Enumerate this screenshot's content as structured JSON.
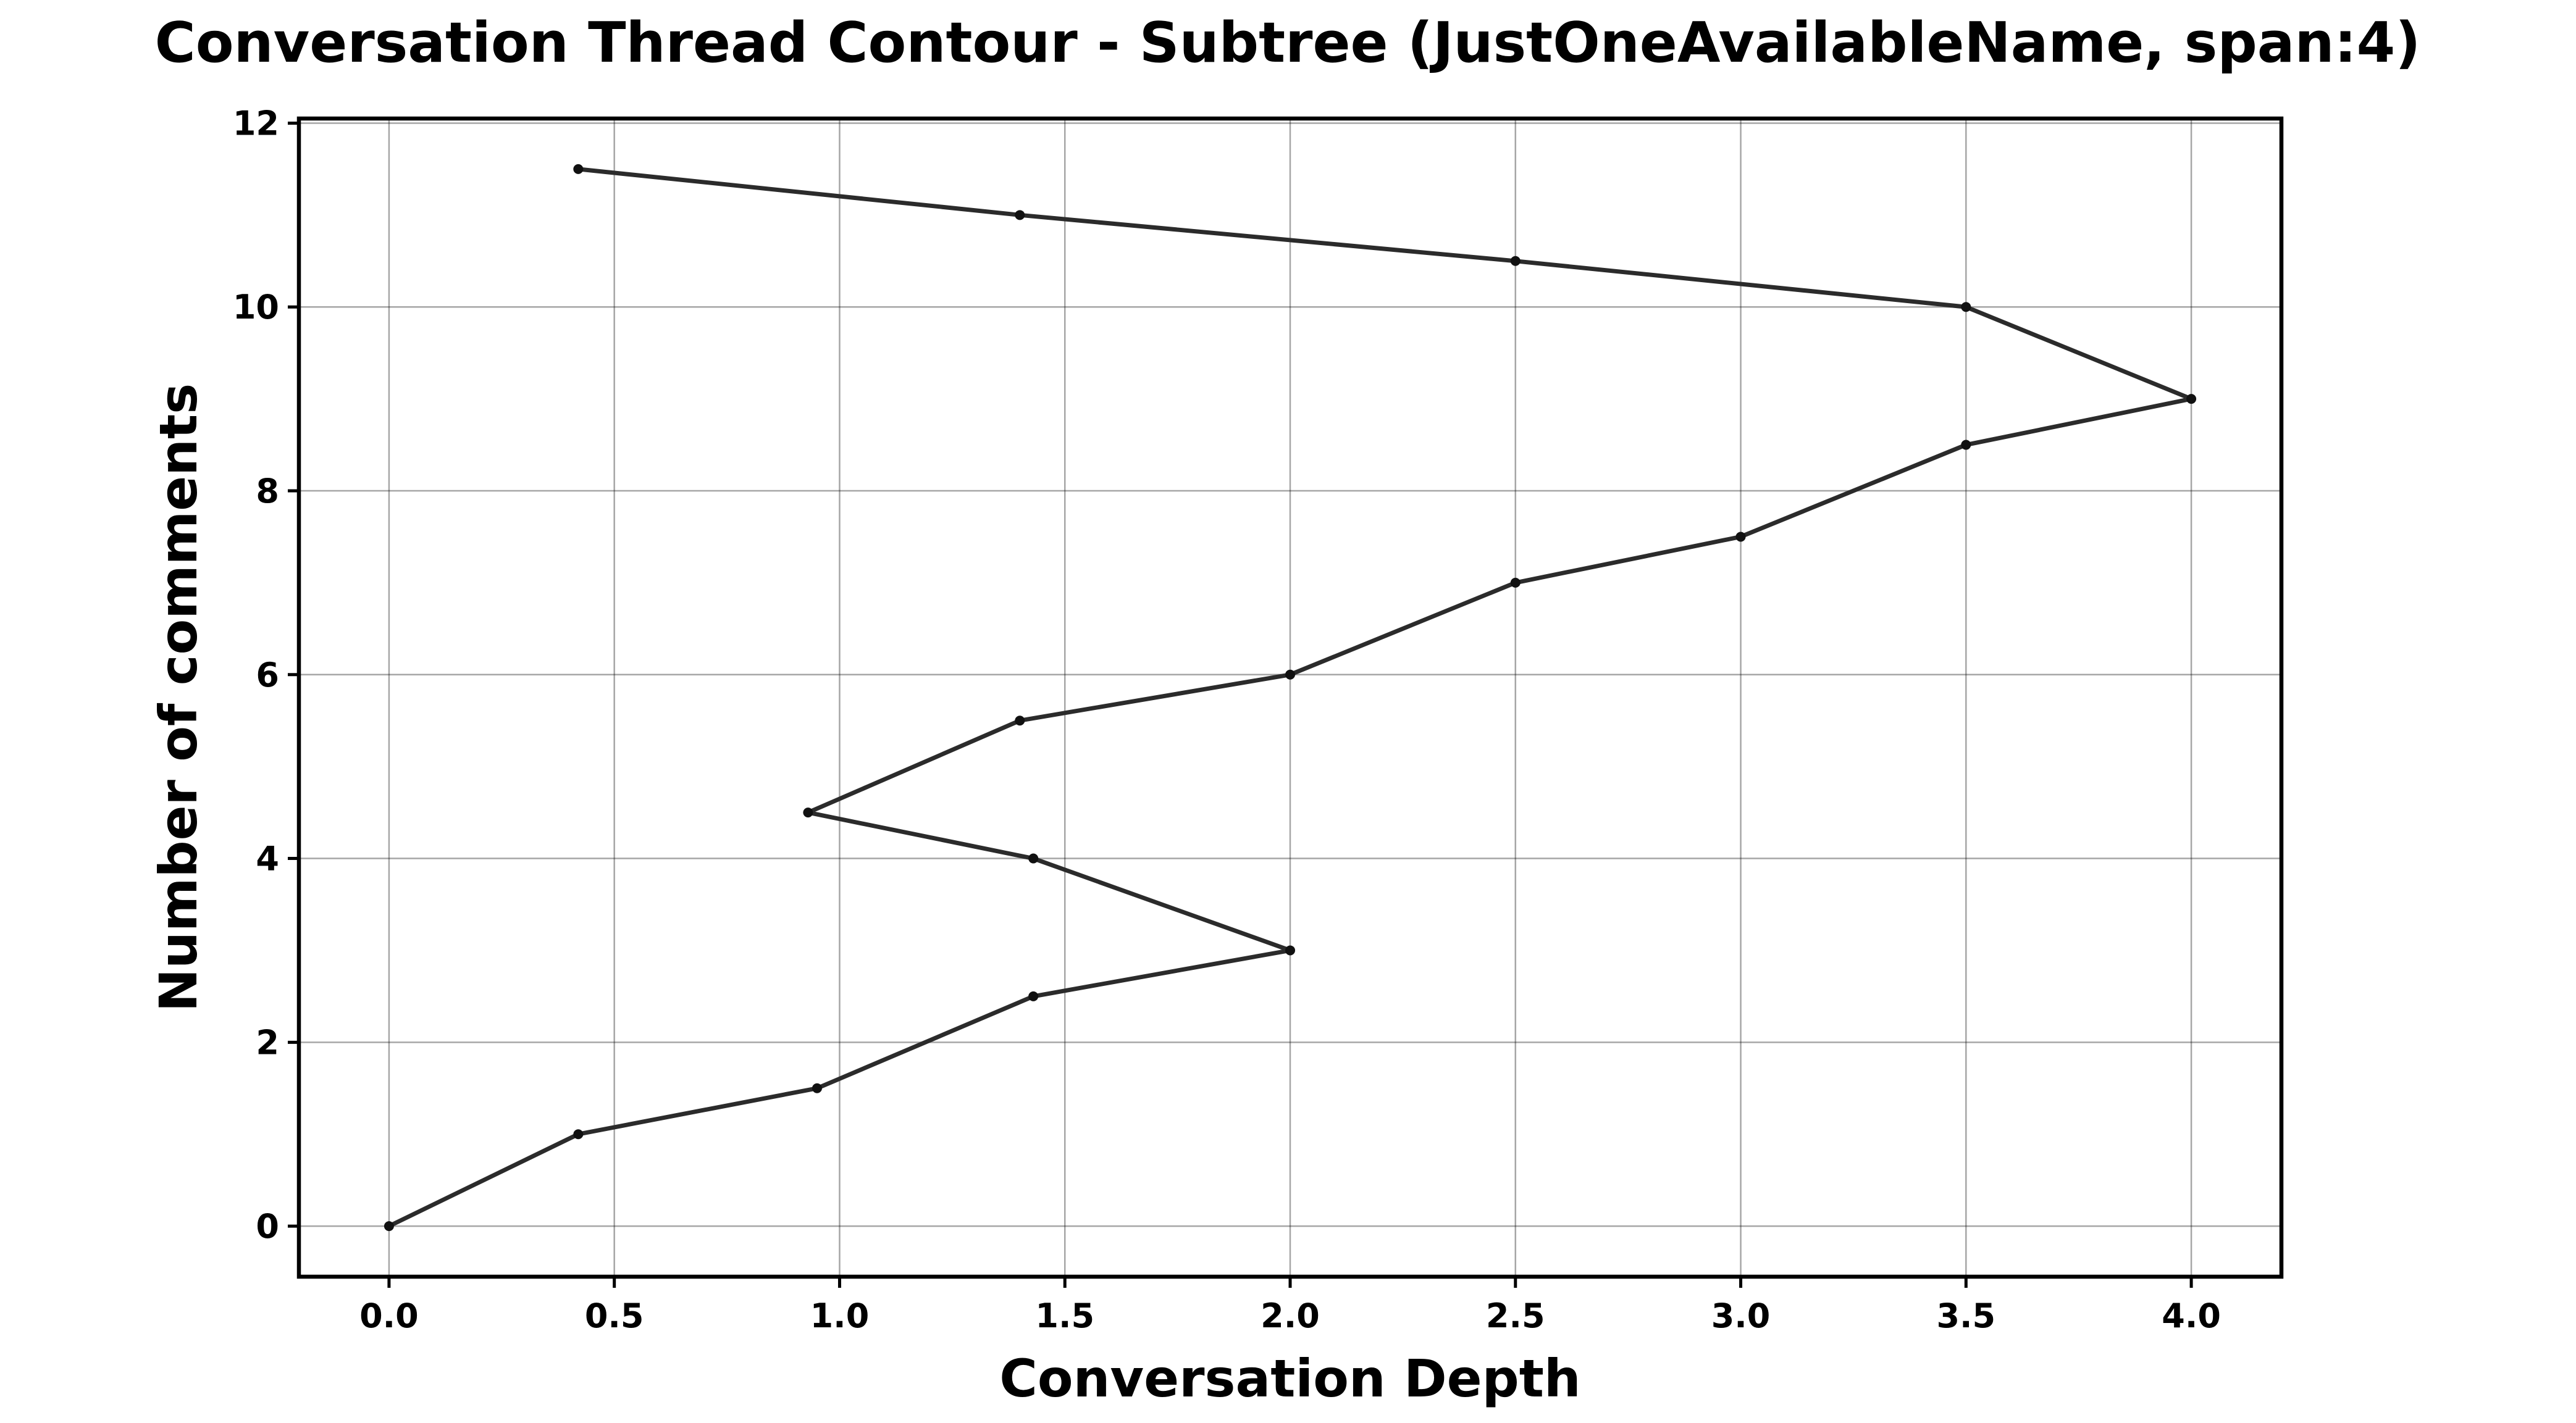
{
  "chart_data": {
    "type": "line",
    "title": "Conversation Thread Contour  - Subtree (JustOneAvailableName, span:4)",
    "xlabel": "Conversation Depth",
    "ylabel": "Number of comments",
    "xlim": [
      -0.2,
      4.2
    ],
    "ylim": [
      -0.55,
      12.05
    ],
    "xticks": [
      "0.0",
      "0.5",
      "1.0",
      "1.5",
      "2.0",
      "2.5",
      "3.0",
      "3.5",
      "4.0"
    ],
    "yticks": [
      "0",
      "2",
      "4",
      "6",
      "8",
      "10",
      "12"
    ],
    "grid": true,
    "colors": {
      "line": "#2b2b2b",
      "marker": "#111111"
    },
    "series": [
      {
        "x": [
          0.0,
          0.42,
          0.95,
          1.43,
          2.0,
          1.43,
          0.93,
          1.4,
          2.0,
          2.5,
          3.0,
          3.5,
          4.0,
          3.5,
          2.5,
          1.4,
          0.42
        ],
        "y": [
          0,
          1,
          1.5,
          2.5,
          3,
          4,
          4.5,
          5.5,
          6,
          7,
          7.5,
          8.5,
          9,
          10,
          10.5,
          11,
          11.5
        ]
      }
    ]
  }
}
